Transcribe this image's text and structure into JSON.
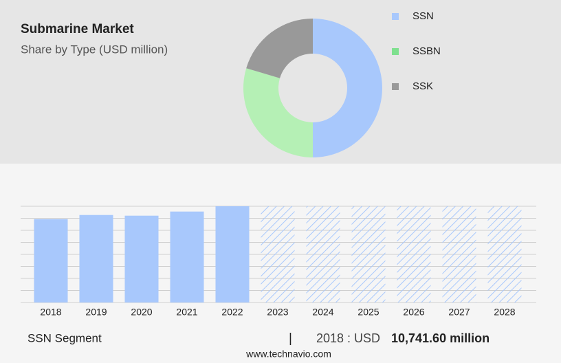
{
  "chart_data": [
    {
      "type": "donut",
      "title": "Submarine Market",
      "subtitle": "Share by Type (USD million)",
      "categories": [
        "SSN",
        "SSBN",
        "SSK"
      ],
      "values": [
        50,
        29.6,
        20.4
      ],
      "colors": [
        "#a8c8fc",
        "#b5f0b5",
        "#999999"
      ],
      "legend_colors": [
        "#a8c8fc",
        "#7fe08f",
        "#999999"
      ]
    },
    {
      "type": "bar",
      "categories": [
        "2018",
        "2019",
        "2020",
        "2021",
        "2022",
        "2023",
        "2024",
        "2025",
        "2026",
        "2027",
        "2028"
      ],
      "values": [
        10741.6,
        11275,
        11186,
        11718,
        12400,
        null,
        null,
        null,
        null,
        null,
        null
      ],
      "color": "#a8c8fc",
      "ylim": [
        0,
        12400
      ],
      "grid": true
    }
  ],
  "footer": {
    "segment": "SSN Segment",
    "separator": "|",
    "year_label": "2018 : USD",
    "value_label": "10,741.60 million",
    "website": "www.technavio.com"
  }
}
